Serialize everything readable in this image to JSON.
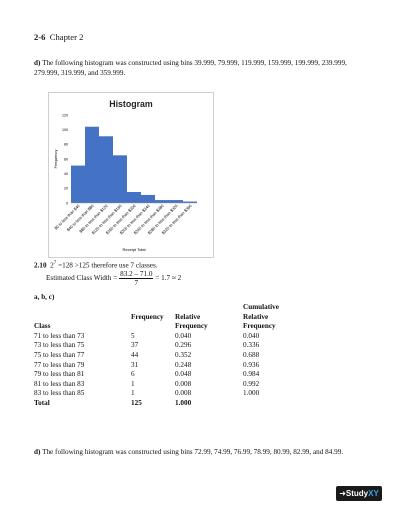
{
  "header": {
    "page_num": "2-6",
    "chapter": "Chapter 2"
  },
  "part_d_top": {
    "label": "d)",
    "text": " The following histogram was constructed using bins 39.999, 79.999, 119.999, 159.999, 199.999, 239.999, 279.999, 319.999, and 359.999."
  },
  "chart_data": {
    "type": "bar",
    "title": "Histogram",
    "xlabel": "Receipt Total",
    "ylabel": "Frequency",
    "ylim": [
      0,
      120
    ],
    "yticks": [
      "0",
      "20",
      "40",
      "60",
      "80",
      "100",
      "120"
    ],
    "categories": [
      "$0 to less than $40",
      "$40 to less than $80",
      "$80 to less than $120",
      "$120 to less than $160",
      "$160 to less than $200",
      "$200 to less than $240",
      "$240 to less than $280",
      "$280 to less than $320",
      "$320 to less than $360"
    ],
    "values": [
      51,
      104,
      91,
      65,
      15,
      11,
      4,
      4,
      2
    ],
    "color": "#4472c4",
    "grid": false
  },
  "sec210": {
    "label": "2.10",
    "lead": "2",
    "exp": "7",
    "rest": " =128 >125  therefore use 7 classes.",
    "ecw_label": "Estimated Class Width =",
    "frac_num": "83.2 – 71.0",
    "frac_den": "7",
    "ecw_result": "= 1.7 ≈ 2",
    "abc": "a, b, c)"
  },
  "freq_table": {
    "top_header": "Cumulative",
    "headers_line1": [
      "",
      "Frequency",
      "Relative",
      "Relative"
    ],
    "headers_line2": [
      "Class",
      "",
      "Frequency",
      "Frequency"
    ],
    "rows": [
      [
        "71 to less than 73",
        "5",
        "0.040",
        "0.040"
      ],
      [
        "73 to less than 75",
        "37",
        "0.296",
        "0.336"
      ],
      [
        "75 to less than 77",
        "44",
        "0.352",
        "0.688"
      ],
      [
        "77 to less than 79",
        "31",
        "0.248",
        "0.936"
      ],
      [
        "79 to less than 81",
        "6",
        "0.048",
        "0.984"
      ],
      [
        "81 to less than 83",
        "1",
        "0.008",
        "0.992"
      ],
      [
        "83 to less than 85",
        "1",
        "0.008",
        "1.000"
      ]
    ],
    "total": [
      "Total",
      "125",
      "1.000",
      ""
    ]
  },
  "part_d_bottom": {
    "label": "d)",
    "text": " The following histogram was constructed using bins 72.99, 74.99, 76.99, 78.99, 80.99, 82.99, and 84.99."
  },
  "logo": {
    "arrow": "➜",
    "study": "Study",
    "xy": "XY"
  }
}
